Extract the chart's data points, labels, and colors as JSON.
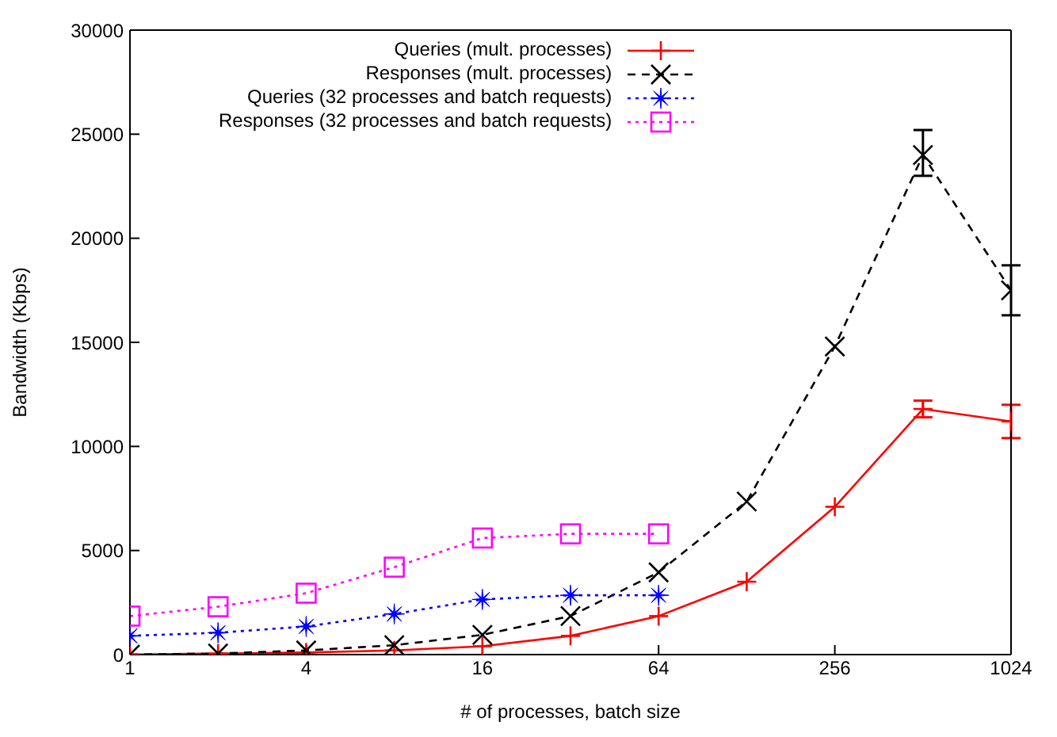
{
  "chart_data": {
    "type": "line",
    "xlabel": "# of processes, batch size",
    "ylabel": "Bandwidth (Kbps)",
    "log": "x",
    "xlim": [
      1,
      1024
    ],
    "xticks": [
      1,
      4,
      16,
      64,
      256,
      1024
    ],
    "ylim": [
      0,
      30000
    ],
    "yticks": [
      0,
      5000,
      10000,
      15000,
      20000,
      25000,
      30000
    ],
    "grid": false,
    "legend": "top",
    "x": [
      1,
      2,
      4,
      8,
      16,
      32,
      64,
      128,
      256,
      512,
      1024
    ],
    "series": [
      {
        "name": "Queries (mult. processes)",
        "color": "#ff0000",
        "marker": "plus",
        "line_style": "solid",
        "values": [
          0,
          50,
          100,
          200,
          400,
          900,
          1850,
          3500,
          7100,
          11800,
          11200
        ],
        "errors": [
          null,
          null,
          null,
          null,
          null,
          null,
          null,
          null,
          null,
          400,
          800
        ]
      },
      {
        "name": "Responses (mult. processes)",
        "color": "#000000",
        "marker": "cross",
        "line_style": "dashed",
        "values": [
          0,
          50,
          200,
          450,
          950,
          1850,
          3950,
          7350,
          14800,
          24000,
          17500
        ],
        "errors": [
          null,
          null,
          null,
          null,
          null,
          null,
          null,
          null,
          null,
          [
            23000,
            25200
          ],
          1200
        ]
      },
      {
        "name": "Queries (32 processes and batch requests)",
        "color": "#0000ff",
        "marker": "star",
        "line_style": "dotted",
        "x": [
          1,
          2,
          4,
          8,
          16,
          32,
          64
        ],
        "values": [
          900,
          1050,
          1350,
          1950,
          2650,
          2850,
          2850
        ]
      },
      {
        "name": "Responses (32 processes and batch requests)",
        "color": "#ff00ff",
        "marker": "square",
        "line_style": "dotted",
        "x": [
          1,
          2,
          4,
          8,
          16,
          32,
          64
        ],
        "values": [
          1850,
          2300,
          2950,
          4200,
          5600,
          5800,
          5800
        ]
      }
    ]
  }
}
